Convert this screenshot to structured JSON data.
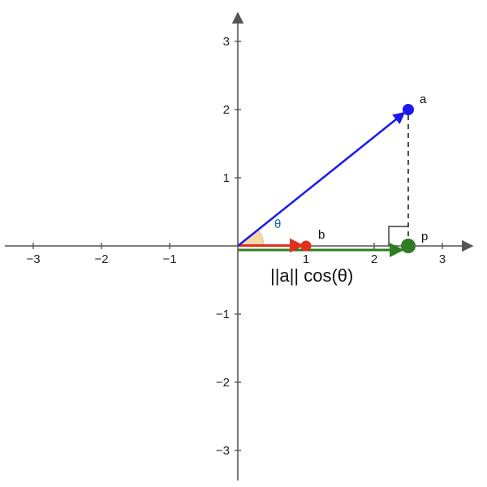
{
  "axes": {
    "x_range": [
      -3.4,
      3.4
    ],
    "y_range": [
      -3.4,
      3.4
    ],
    "x_ticks": [
      "−3",
      "−2",
      "−1",
      "1",
      "2",
      "3"
    ],
    "y_ticks": [
      "−3",
      "−2",
      "−1",
      "1",
      "2",
      "3"
    ],
    "x_tick_values": [
      -3,
      -2,
      -1,
      1,
      2,
      3
    ],
    "y_tick_values": [
      -3,
      -2,
      -1,
      1,
      2,
      3
    ],
    "grid": false
  },
  "vectors": {
    "a": {
      "label": "a",
      "x": 2.5,
      "y": 2,
      "color": "#1a1aee"
    },
    "b": {
      "label": "b",
      "x": 1,
      "y": 0,
      "color": "#e0301e"
    },
    "p": {
      "label": "p",
      "x": 2.5,
      "y": 0,
      "color": "#2e7d22"
    }
  },
  "angle": {
    "label": "θ",
    "label_color": "#1a5fb4",
    "fill": "#f7d9a8"
  },
  "projection_label": "||a|| cos(θ)",
  "colors": {
    "axis": "#555555",
    "dashed": "#111111"
  }
}
